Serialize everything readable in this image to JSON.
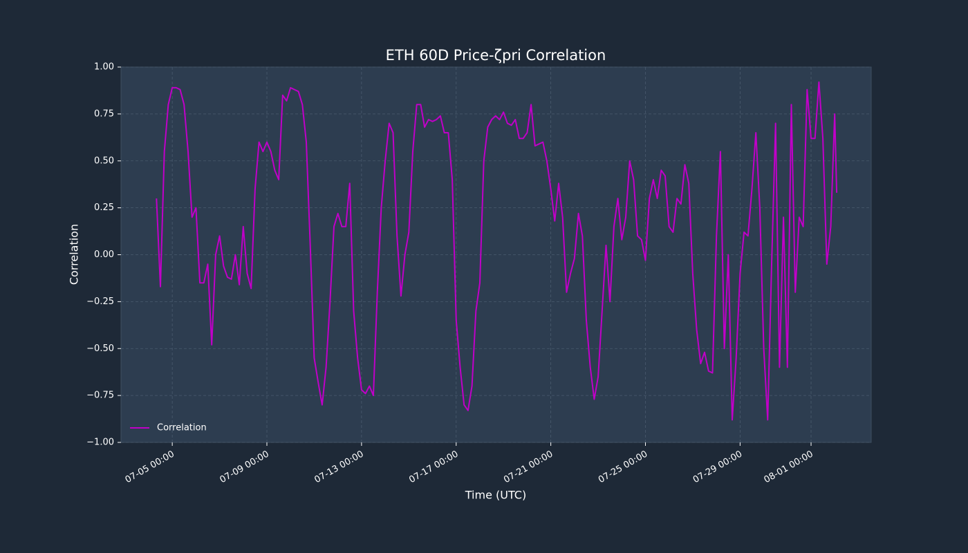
{
  "chart_data": {
    "type": "line",
    "title": "ETH 60D Price-ζpri Correlation",
    "x_label": "Time (UTC)",
    "y_label": "Correlation",
    "grid": true,
    "legend": "lower left",
    "xlim": [
      "07-02 20:00",
      "08-03 13:00"
    ],
    "xticks": [
      "07-05 00:00",
      "07-09 00:00",
      "07-13 00:00",
      "07-17 00:00",
      "07-21 00:00",
      "07-25 00:00",
      "07-29 00:00",
      "08-01 00:00"
    ],
    "ylim": [
      -1,
      1
    ],
    "yticks": [
      {
        "value": -1,
        "label": "−1.00"
      },
      {
        "value": -0.75,
        "label": "−0.75"
      },
      {
        "value": -0.5,
        "label": "−0.50"
      },
      {
        "value": -0.25,
        "label": "−0.25"
      },
      {
        "value": 0,
        "label": "0.00"
      },
      {
        "value": 0.25,
        "label": "0.25"
      },
      {
        "value": 0.5,
        "label": "0.50"
      },
      {
        "value": 0.75,
        "label": "0.75"
      },
      {
        "value": 1,
        "label": "1.00"
      }
    ],
    "x": [
      "07-04 08:00",
      "07-04 12:00",
      "07-04 16:00",
      "07-04 20:00",
      "07-05 00:00",
      "07-05 04:00",
      "07-05 08:00",
      "07-05 12:00",
      "07-05 16:00",
      "07-05 20:00",
      "07-06 00:00",
      "07-06 04:00",
      "07-06 08:00",
      "07-06 12:00",
      "07-06 16:00",
      "07-06 20:00",
      "07-07 00:00",
      "07-07 04:00",
      "07-07 08:00",
      "07-07 12:00",
      "07-07 16:00",
      "07-07 20:00",
      "07-08 00:00",
      "07-08 04:00",
      "07-08 08:00",
      "07-08 12:00",
      "07-08 16:00",
      "07-08 20:00",
      "07-09 00:00",
      "07-09 04:00",
      "07-09 08:00",
      "07-09 12:00",
      "07-09 16:00",
      "07-09 20:00",
      "07-10 00:00",
      "07-10 04:00",
      "07-10 08:00",
      "07-10 12:00",
      "07-10 16:00",
      "07-10 20:00",
      "07-11 00:00",
      "07-11 04:00",
      "07-11 08:00",
      "07-11 12:00",
      "07-11 16:00",
      "07-11 20:00",
      "07-12 00:00",
      "07-12 04:00",
      "07-12 08:00",
      "07-12 12:00",
      "07-12 16:00",
      "07-12 20:00",
      "07-13 00:00",
      "07-13 04:00",
      "07-13 08:00",
      "07-13 12:00",
      "07-13 16:00",
      "07-13 20:00",
      "07-14 00:00",
      "07-14 04:00",
      "07-14 08:00",
      "07-14 12:00",
      "07-14 16:00",
      "07-14 20:00",
      "07-15 00:00",
      "07-15 04:00",
      "07-15 08:00",
      "07-15 12:00",
      "07-15 16:00",
      "07-15 20:00",
      "07-16 00:00",
      "07-16 04:00",
      "07-16 08:00",
      "07-16 12:00",
      "07-16 16:00",
      "07-16 20:00",
      "07-17 00:00",
      "07-17 04:00",
      "07-17 08:00",
      "07-17 12:00",
      "07-17 16:00",
      "07-17 20:00",
      "07-18 00:00",
      "07-18 04:00",
      "07-18 08:00",
      "07-18 12:00",
      "07-18 16:00",
      "07-18 20:00",
      "07-19 00:00",
      "07-19 04:00",
      "07-19 08:00",
      "07-19 12:00",
      "07-19 16:00",
      "07-19 20:00",
      "07-20 00:00",
      "07-20 04:00",
      "07-20 08:00",
      "07-20 12:00",
      "07-20 16:00",
      "07-20 20:00",
      "07-21 00:00",
      "07-21 04:00",
      "07-21 08:00",
      "07-21 12:00",
      "07-21 16:00",
      "07-21 20:00",
      "07-22 00:00",
      "07-22 04:00",
      "07-22 08:00",
      "07-22 12:00",
      "07-22 16:00",
      "07-22 20:00",
      "07-23 00:00",
      "07-23 04:00",
      "07-23 08:00",
      "07-23 12:00",
      "07-23 16:00",
      "07-23 20:00",
      "07-24 00:00",
      "07-24 04:00",
      "07-24 08:00",
      "07-24 12:00",
      "07-24 16:00",
      "07-24 20:00",
      "07-25 00:00",
      "07-25 04:00",
      "07-25 08:00",
      "07-25 12:00",
      "07-25 16:00",
      "07-25 20:00",
      "07-26 00:00",
      "07-26 04:00",
      "07-26 08:00",
      "07-26 12:00",
      "07-26 16:00",
      "07-26 20:00",
      "07-27 00:00",
      "07-27 04:00",
      "07-27 08:00",
      "07-27 12:00",
      "07-27 16:00",
      "07-27 20:00",
      "07-28 00:00",
      "07-28 04:00",
      "07-28 08:00",
      "07-28 12:00",
      "07-28 16:00",
      "07-28 20:00",
      "07-29 00:00",
      "07-29 04:00",
      "07-29 08:00",
      "07-29 12:00",
      "07-29 16:00",
      "07-29 20:00",
      "07-30 00:00",
      "07-30 04:00",
      "07-30 08:00",
      "07-30 12:00",
      "07-30 16:00",
      "07-30 20:00",
      "07-31 00:00",
      "07-31 04:00",
      "07-31 08:00",
      "07-31 12:00",
      "07-31 16:00",
      "07-31 20:00",
      "08-01 00:00",
      "08-01 04:00",
      "08-01 08:00",
      "08-01 12:00",
      "08-01 16:00",
      "08-01 20:00",
      "08-02 00:00",
      "08-02 02:00"
    ],
    "series": [
      {
        "name": "Correlation",
        "color": "#c000c8",
        "values": [
          0.3,
          -0.17,
          0.55,
          0.8,
          0.89,
          0.89,
          0.88,
          0.8,
          0.55,
          0.2,
          0.25,
          -0.15,
          -0.15,
          -0.05,
          -0.48,
          0.0,
          0.1,
          -0.06,
          -0.12,
          -0.13,
          0.0,
          -0.16,
          0.15,
          -0.1,
          -0.18,
          0.35,
          0.6,
          0.55,
          0.6,
          0.55,
          0.45,
          0.4,
          0.85,
          0.82,
          0.89,
          0.88,
          0.87,
          0.8,
          0.6,
          0.05,
          -0.55,
          -0.68,
          -0.8,
          -0.6,
          -0.25,
          0.15,
          0.22,
          0.15,
          0.15,
          0.38,
          -0.3,
          -0.55,
          -0.72,
          -0.74,
          -0.7,
          -0.75,
          -0.2,
          0.25,
          0.5,
          0.7,
          0.65,
          0.1,
          -0.22,
          0.0,
          0.12,
          0.55,
          0.8,
          0.8,
          0.68,
          0.72,
          0.71,
          0.72,
          0.74,
          0.65,
          0.65,
          0.4,
          -0.35,
          -0.6,
          -0.8,
          -0.83,
          -0.7,
          -0.3,
          -0.15,
          0.5,
          0.68,
          0.72,
          0.74,
          0.72,
          0.76,
          0.7,
          0.69,
          0.72,
          0.62,
          0.62,
          0.65,
          0.8,
          0.58,
          0.59,
          0.6,
          0.5,
          0.35,
          0.18,
          0.38,
          0.2,
          -0.2,
          -0.1,
          -0.02,
          0.22,
          0.1,
          -0.35,
          -0.6,
          -0.77,
          -0.65,
          -0.3,
          0.05,
          -0.25,
          0.15,
          0.3,
          0.08,
          0.2,
          0.5,
          0.4,
          0.1,
          0.08,
          -0.03,
          0.3,
          0.4,
          0.3,
          0.45,
          0.42,
          0.15,
          0.12,
          0.3,
          0.27,
          0.48,
          0.38,
          -0.1,
          -0.4,
          -0.58,
          -0.52,
          -0.62,
          -0.63,
          0.1,
          0.55,
          -0.5,
          0.0,
          -0.88,
          -0.55,
          -0.1,
          0.12,
          0.1,
          0.35,
          0.65,
          0.25,
          -0.5,
          -0.88,
          -0.05,
          0.7,
          -0.6,
          0.2,
          -0.6,
          0.8,
          -0.2,
          0.2,
          0.15,
          0.88,
          0.62,
          0.62,
          0.92,
          0.62,
          -0.05,
          0.15,
          0.75,
          0.33
        ]
      }
    ]
  }
}
